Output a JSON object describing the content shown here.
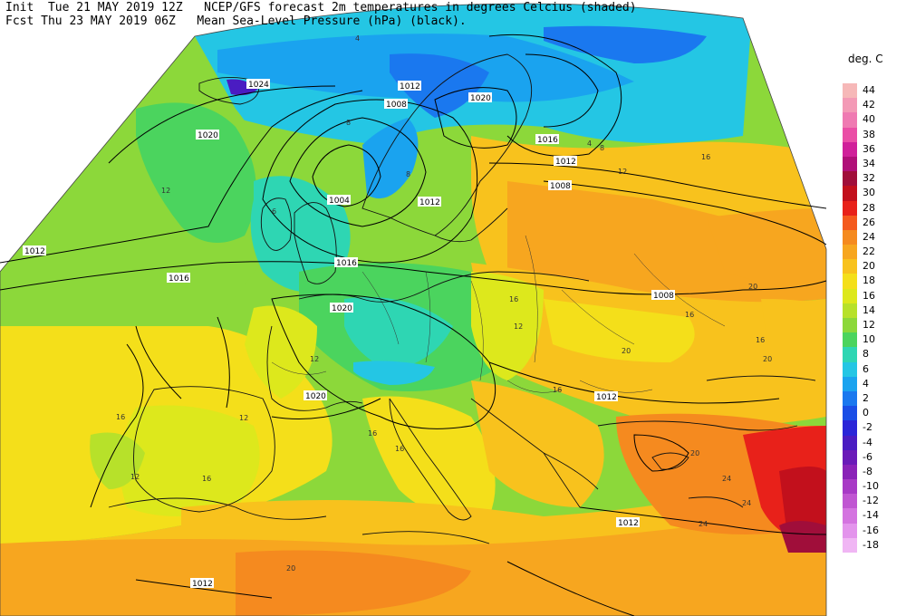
{
  "header": {
    "line1": "Init  Tue 21 MAY 2019 12Z   NCEP/GFS forecast 2m temperatures in degrees Celcius (shaded)",
    "line2": "Fcst Thu 23 MAY 2019 06Z   Mean Sea-Level Pressure (hPa) (black)."
  },
  "legend": {
    "title": "deg. C",
    "entries": [
      {
        "label": "44",
        "color": "#f6b8b8"
      },
      {
        "label": "42",
        "color": "#f39ab6"
      },
      {
        "label": "40",
        "color": "#ef7ab2"
      },
      {
        "label": "38",
        "color": "#ea4ea6"
      },
      {
        "label": "36",
        "color": "#d0209a"
      },
      {
        "label": "34",
        "color": "#b00f78"
      },
      {
        "label": "32",
        "color": "#a00e3a"
      },
      {
        "label": "30",
        "color": "#c2101c"
      },
      {
        "label": "28",
        "color": "#e8211a"
      },
      {
        "label": "26",
        "color": "#f45a1e"
      },
      {
        "label": "24",
        "color": "#f58a1f"
      },
      {
        "label": "22",
        "color": "#f7a61f"
      },
      {
        "label": "20",
        "color": "#f8c21d"
      },
      {
        "label": "18",
        "color": "#f4df1a"
      },
      {
        "label": "16",
        "color": "#dde81c"
      },
      {
        "label": "14",
        "color": "#b7e12a"
      },
      {
        "label": "12",
        "color": "#8cd83a"
      },
      {
        "label": "10",
        "color": "#4bd45e"
      },
      {
        "label": "8",
        "color": "#2ed6b3"
      },
      {
        "label": "6",
        "color": "#24c6e4"
      },
      {
        "label": "4",
        "color": "#1aa3ef"
      },
      {
        "label": "2",
        "color": "#1a78ef"
      },
      {
        "label": "0",
        "color": "#1a4ee6"
      },
      {
        "label": "-2",
        "color": "#2a25d8"
      },
      {
        "label": "-4",
        "color": "#4a1cc2"
      },
      {
        "label": "-6",
        "color": "#6a1ab8"
      },
      {
        "label": "-8",
        "color": "#8a22b8"
      },
      {
        "label": "-10",
        "color": "#a83ac6"
      },
      {
        "label": "-12",
        "color": "#c056d2"
      },
      {
        "label": "-14",
        "color": "#d474e0"
      },
      {
        "label": "-16",
        "color": "#e394ec"
      },
      {
        "label": "-18",
        "color": "#f0b6f4"
      }
    ]
  },
  "isobar_labels": [
    "1024",
    "1012",
    "1008",
    "1020",
    "1016",
    "1012",
    "1020",
    "1004",
    "1012",
    "1008",
    "1012",
    "1016",
    "1020",
    "1020",
    "1008",
    "1012",
    "1012",
    "1016",
    "1012"
  ],
  "temp_labels": [
    "4",
    "8",
    "12",
    "16",
    "16",
    "12",
    "16",
    "16",
    "12",
    "20",
    "20",
    "24",
    "24",
    "24",
    "20",
    "12",
    "16",
    "16",
    "12",
    "8",
    "20",
    "16",
    "12",
    "16",
    "20",
    "16",
    "6",
    "8",
    "4"
  ]
}
